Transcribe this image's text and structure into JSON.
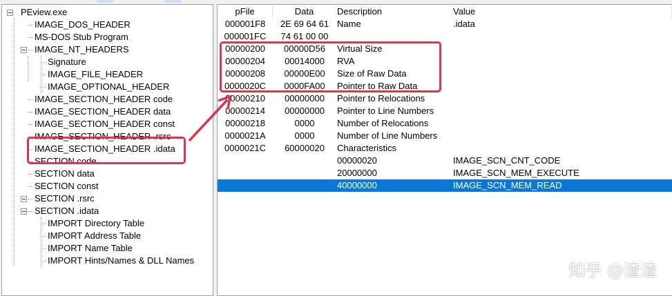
{
  "tree": [
    {
      "label": "PEview.exe",
      "level": 0,
      "expander": true
    },
    {
      "label": "IMAGE_DOS_HEADER",
      "level": 1
    },
    {
      "label": "MS-DOS Stub Program",
      "level": 1
    },
    {
      "label": "IMAGE_NT_HEADERS",
      "level": 1,
      "expander": true
    },
    {
      "label": "Signature",
      "level": 2
    },
    {
      "label": "IMAGE_FILE_HEADER",
      "level": 2
    },
    {
      "label": "IMAGE_OPTIONAL_HEADER",
      "level": 2
    },
    {
      "label": "IMAGE_SECTION_HEADER code",
      "level": 1
    },
    {
      "label": "IMAGE_SECTION_HEADER data",
      "level": 1
    },
    {
      "label": "IMAGE_SECTION_HEADER const",
      "level": 1
    },
    {
      "label": "IMAGE_SECTION_HEADER .rsrc",
      "level": 1
    },
    {
      "label": "IMAGE_SECTION_HEADER .idata",
      "level": 1,
      "highlighted": true
    },
    {
      "label": "SECTION code",
      "level": 1
    },
    {
      "label": "SECTION data",
      "level": 1
    },
    {
      "label": "SECTION const",
      "level": 1
    },
    {
      "label": "SECTION .rsrc",
      "level": 1,
      "expander": true
    },
    {
      "label": "SECTION .idata",
      "level": 1,
      "expander": true
    },
    {
      "label": "IMPORT Directory Table",
      "level": 2
    },
    {
      "label": "IMPORT Address Table",
      "level": 2
    },
    {
      "label": "IMPORT Name Table",
      "level": 2
    },
    {
      "label": "IMPORT Hints/Names & DLL Names",
      "level": 2
    }
  ],
  "columns": [
    "pFile",
    "Data",
    "Description",
    "Value"
  ],
  "rows": [
    [
      "000001F8",
      "2E  69  64  61",
      "Name",
      ".idata"
    ],
    [
      "000001FC",
      "74  61  00  00",
      "",
      ""
    ],
    [
      "00000200",
      "00000D56",
      "Virtual Size",
      ""
    ],
    [
      "00000204",
      "00014000",
      "RVA",
      ""
    ],
    [
      "00000208",
      "00000E00",
      "Size of Raw Data",
      ""
    ],
    [
      "0000020C",
      "0000FA00",
      "Pointer to Raw Data",
      ""
    ],
    [
      "00000210",
      "00000000",
      "Pointer to Relocations",
      ""
    ],
    [
      "00000214",
      "00000000",
      "Pointer to Line Numbers",
      ""
    ],
    [
      "00000218",
      "0000",
      "Number of Relocations",
      ""
    ],
    [
      "0000021A",
      "0000",
      "Number of Line Numbers",
      ""
    ],
    [
      "0000021C",
      "60000020",
      "Characteristics",
      ""
    ],
    [
      "",
      "",
      "00000020",
      "IMAGE_SCN_CNT_CODE"
    ],
    [
      "",
      "",
      "20000000",
      "IMAGE_SCN_MEM_EXECUTE"
    ],
    [
      "",
      "",
      "40000000",
      "IMAGE_SCN_MEM_READ"
    ]
  ],
  "selected_row": 13,
  "colors": {
    "selection": "#0a78d7",
    "annotation": "#d9374f"
  },
  "watermark": "知乎 @渣渣"
}
